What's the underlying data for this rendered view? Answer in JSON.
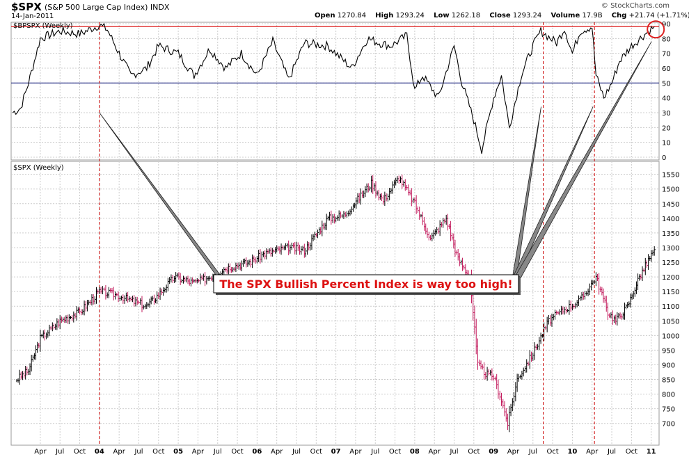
{
  "header": {
    "symbol": "$SPX",
    "name": "(S&P 500 Large Cap Index)",
    "exchange": "INDX",
    "date": "14-Jan-2011",
    "brand": "© StockCharts.com",
    "open_label": "Open",
    "open": "1270.84",
    "high_label": "High",
    "high": "1293.24",
    "low_label": "Low",
    "low": "1262.18",
    "close_label": "Close",
    "close": "1293.24",
    "volume_label": "Volume",
    "volume": "17.9B",
    "chg_label": "Chg",
    "chg": "+21.74 (+1.71%)",
    "chg_icon": "triangle-up-icon"
  },
  "annotation": {
    "text": "The SPX Bullish Percent Index is way too high!",
    "color": "#dd1111"
  },
  "colors": {
    "indicator_line": "#000000",
    "threshold_line": "#1a237e",
    "upper_line": "#dd2222",
    "marker_line": "#cc0000",
    "bar_up": "#000000",
    "bar_down": "#c2185b",
    "grid": "#cccccc"
  },
  "chart_data": [
    {
      "type": "line",
      "title": "$BPSPX (Weekly)",
      "ylim": [
        0,
        90
      ],
      "yticks": [
        0,
        10,
        20,
        30,
        40,
        50,
        60,
        70,
        80,
        90
      ],
      "hlines": [
        50,
        88
      ],
      "x": [
        2002.9,
        2003.0,
        2003.1,
        2003.25,
        2003.5,
        2003.75,
        2004.0,
        2004.1,
        2004.25,
        2004.4,
        2004.6,
        2004.75,
        2005.0,
        2005.2,
        2005.4,
        2005.6,
        2005.8,
        2006.0,
        2006.2,
        2006.4,
        2006.6,
        2006.9,
        2007.0,
        2007.2,
        2007.4,
        2007.55,
        2007.7,
        2007.9,
        2008.0,
        2008.1,
        2008.3,
        2008.5,
        2008.6,
        2008.75,
        2008.85,
        2009.0,
        2009.1,
        2009.2,
        2009.35,
        2009.5,
        2009.6,
        2009.8,
        2009.9,
        2010.0,
        2010.1,
        2010.25,
        2010.3,
        2010.4,
        2010.5,
        2010.6,
        2010.75,
        2010.9,
        2011.04
      ],
      "y": [
        30,
        33,
        50,
        80,
        85,
        83,
        89,
        86,
        70,
        55,
        60,
        75,
        70,
        55,
        73,
        60,
        70,
        55,
        78,
        52,
        77,
        75,
        70,
        60,
        80,
        77,
        75,
        82,
        45,
        55,
        40,
        75,
        50,
        25,
        5,
        40,
        55,
        20,
        55,
        75,
        85,
        77,
        87,
        70,
        85,
        88,
        55,
        40,
        50,
        65,
        75,
        82,
        88
      ],
      "markers": [
        2004.0,
        2009.63,
        2010.28
      ]
    },
    {
      "type": "ohlc",
      "title": "$SPX (Weekly)",
      "ylim": [
        640,
        1580
      ],
      "yticks": [
        700,
        750,
        800,
        850,
        900,
        950,
        1000,
        1050,
        1100,
        1150,
        1200,
        1250,
        1300,
        1350,
        1400,
        1450,
        1500,
        1550
      ],
      "x": [
        2002.95,
        2003.1,
        2003.25,
        2003.5,
        2003.75,
        2004.0,
        2004.2,
        2004.4,
        2004.6,
        2004.75,
        2004.95,
        2005.2,
        2005.4,
        2005.6,
        2005.9,
        2006.1,
        2006.4,
        2006.6,
        2006.9,
        2007.1,
        2007.2,
        2007.45,
        2007.6,
        2007.8,
        2008.0,
        2008.2,
        2008.4,
        2008.55,
        2008.7,
        2008.8,
        2008.9,
        2009.0,
        2009.1,
        2009.18,
        2009.3,
        2009.5,
        2009.7,
        2009.9,
        2010.1,
        2010.3,
        2010.45,
        2010.55,
        2010.7,
        2010.85,
        2011.04
      ],
      "y": [
        850,
        880,
        990,
        1050,
        1080,
        1150,
        1140,
        1120,
        1100,
        1140,
        1200,
        1180,
        1200,
        1230,
        1250,
        1280,
        1300,
        1290,
        1400,
        1410,
        1440,
        1520,
        1460,
        1540,
        1450,
        1330,
        1400,
        1260,
        1200,
        900,
        870,
        860,
        780,
        700,
        850,
        940,
        1050,
        1090,
        1120,
        1200,
        1080,
        1050,
        1100,
        1200,
        1293
      ]
    }
  ],
  "x_axis": {
    "labels": [
      {
        "t": 2003.25,
        "label": "Apr"
      },
      {
        "t": 2003.5,
        "label": "Jul"
      },
      {
        "t": 2003.75,
        "label": "Oct"
      },
      {
        "t": 2004.0,
        "label": "04",
        "bold": true
      },
      {
        "t": 2004.25,
        "label": "Apr"
      },
      {
        "t": 2004.5,
        "label": "Jul"
      },
      {
        "t": 2004.75,
        "label": "Oct"
      },
      {
        "t": 2005.0,
        "label": "05",
        "bold": true
      },
      {
        "t": 2005.25,
        "label": "Apr"
      },
      {
        "t": 2005.5,
        "label": "Jul"
      },
      {
        "t": 2005.75,
        "label": "Oct"
      },
      {
        "t": 2006.0,
        "label": "06",
        "bold": true
      },
      {
        "t": 2006.25,
        "label": "Apr"
      },
      {
        "t": 2006.5,
        "label": "Jul"
      },
      {
        "t": 2006.75,
        "label": "Oct"
      },
      {
        "t": 2007.0,
        "label": "07",
        "bold": true
      },
      {
        "t": 2007.25,
        "label": "Apr"
      },
      {
        "t": 2007.5,
        "label": "Jul"
      },
      {
        "t": 2007.75,
        "label": "Oct"
      },
      {
        "t": 2008.0,
        "label": "08",
        "bold": true
      },
      {
        "t": 2008.25,
        "label": "Apr"
      },
      {
        "t": 2008.5,
        "label": "Jul"
      },
      {
        "t": 2008.75,
        "label": "Oct"
      },
      {
        "t": 2009.0,
        "label": "09",
        "bold": true
      },
      {
        "t": 2009.25,
        "label": "Apr"
      },
      {
        "t": 2009.5,
        "label": "Jul"
      },
      {
        "t": 2009.75,
        "label": "Oct"
      },
      {
        "t": 2010.0,
        "label": "10",
        "bold": true
      },
      {
        "t": 2010.25,
        "label": "Apr"
      },
      {
        "t": 2010.5,
        "label": "Jul"
      },
      {
        "t": 2010.75,
        "label": "Oct"
      },
      {
        "t": 2011.0,
        "label": "11",
        "bold": true
      }
    ]
  }
}
